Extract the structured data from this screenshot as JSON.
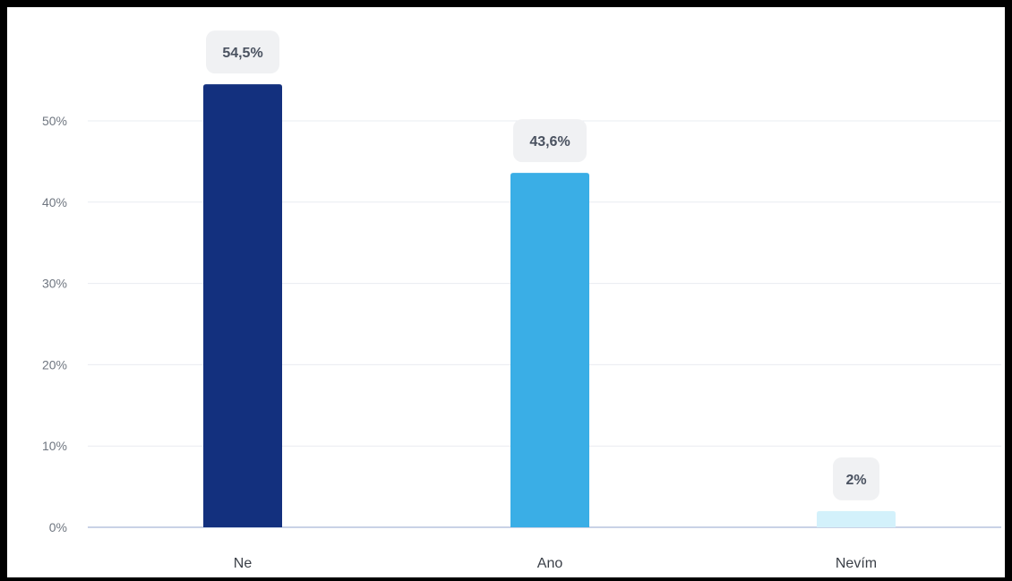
{
  "chart_data": {
    "type": "bar",
    "categories": [
      "Ne",
      "Ano",
      "Nevím"
    ],
    "values": [
      54.5,
      43.6,
      2
    ],
    "data_labels": [
      "54,5%",
      "43,6%",
      "2%"
    ],
    "colors": [
      "#13307e",
      "#3aaee6",
      "#d3f1fb"
    ],
    "ylim": [
      0,
      60
    ],
    "yticks": [
      0,
      10,
      20,
      30,
      40,
      50
    ],
    "ytick_labels": [
      "0%",
      "10%",
      "20%",
      "30%",
      "40%",
      "50%"
    ],
    "grid": true,
    "legend": "none",
    "title": "",
    "xlabel": "",
    "ylabel": ""
  }
}
